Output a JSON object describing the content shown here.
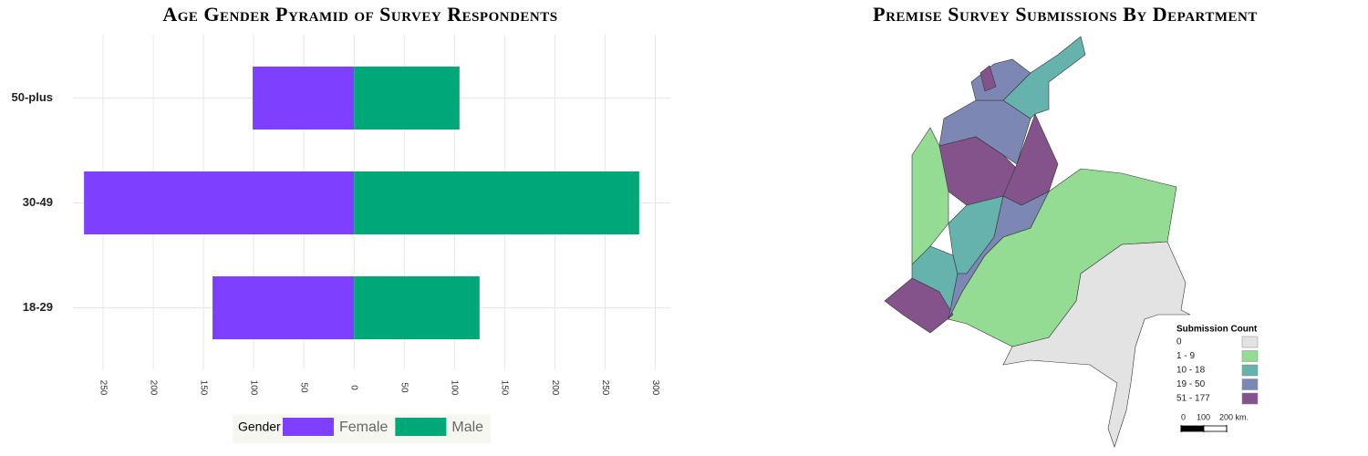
{
  "chart_data": [
    {
      "type": "bar",
      "orientation": "horizontal",
      "title": "Age Gender Pyramid of Survey Respondents",
      "categories": [
        "18-29",
        "30-49",
        "50-plus"
      ],
      "series": [
        {
          "name": "Female",
          "color": "#7f3fff",
          "values": [
            -141,
            -269,
            -101
          ]
        },
        {
          "name": "Male",
          "color": "#00a878",
          "values": [
            125,
            284,
            105
          ]
        }
      ],
      "xlim": [
        -280,
        315
      ],
      "xticks": [
        {
          "value": -250,
          "label": "250"
        },
        {
          "value": -200,
          "label": "200"
        },
        {
          "value": -150,
          "label": "150"
        },
        {
          "value": -100,
          "label": "100"
        },
        {
          "value": -50,
          "label": "50"
        },
        0,
        50,
        100,
        150,
        200,
        250,
        300
      ],
      "grid": true,
      "stacked": true,
      "legend_title": "Gender",
      "legend_position": "bottom"
    },
    {
      "type": "map",
      "title": "Premise Survey Submissions By Department",
      "legend_title": "Submission Count",
      "legend": [
        {
          "label": "0",
          "color": "#e3e3e3"
        },
        {
          "label": "1 - 9",
          "color": "#94db94"
        },
        {
          "label": "10 - 18",
          "color": "#66b2ac"
        },
        {
          "label": "19 - 50",
          "color": "#7c88b3"
        },
        {
          "label": "51 - 177",
          "color": "#85538c"
        }
      ],
      "scale_bar": [
        0,
        100,
        {
          "value": 200,
          "label": "200 km."
        }
      ],
      "legend_position": "bottom-right"
    }
  ]
}
